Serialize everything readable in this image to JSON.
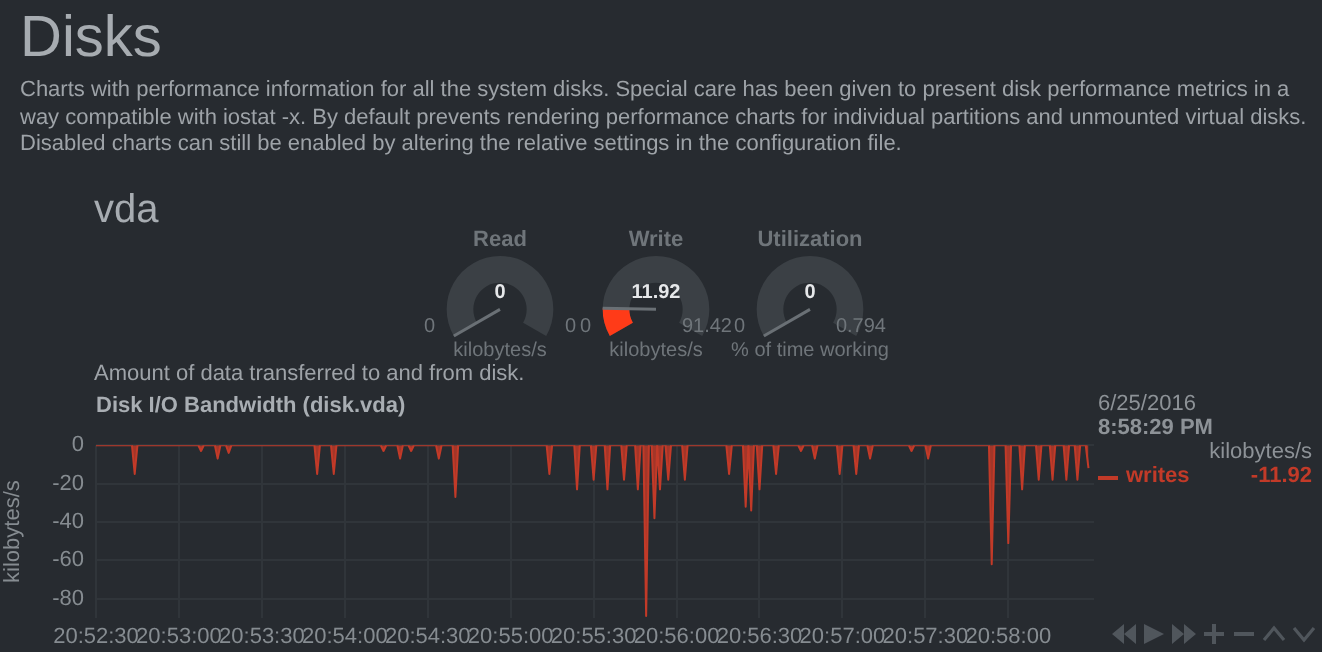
{
  "chart_data": [
    {
      "type": "other",
      "title": "Disks",
      "subtitle": "Charts with performance information for all the system disks. Special care has been given to present disk performance metrics in a way compatible with iostat -x. By default prevents rendering performance charts for individual partitions and unmounted virtual disks. Disabled charts can still be enabled by altering the relative settings in the configuration file.",
      "annotations": [
        "vda"
      ]
    },
    {
      "type": "other",
      "title": "Read",
      "values": [
        0
      ],
      "data_labels": true,
      "annotations": [
        "0",
        "0"
      ],
      "ylabel": "kilobytes/s",
      "color": "#ff3b18"
    },
    {
      "type": "other",
      "title": "Write",
      "values": [
        11.92
      ],
      "data_labels": true,
      "annotations": [
        "0",
        "91.42"
      ],
      "ylabel": "kilobytes/s",
      "color": "#ff3b18"
    },
    {
      "type": "other",
      "title": "Utilization",
      "values": [
        0
      ],
      "data_labels": true,
      "annotations": [
        "0",
        "0.794"
      ],
      "ylabel": "% of time working",
      "color": "#ff3b18"
    },
    {
      "type": "area",
      "title": "Disk I/O Bandwidth (disk.vda)",
      "subtitle": "Amount of data transferred to and from disk.",
      "ylabel": "kilobytes/s",
      "grid": true,
      "legend": "right",
      "x": [
        "2016-06-25T20:52:30",
        "2016-06-25T20:52:43",
        "2016-06-25T20:52:44",
        "2016-06-25T20:52:45",
        "2016-06-25T20:53:07",
        "2016-06-25T20:53:08",
        "2016-06-25T20:53:09",
        "2016-06-25T20:53:13",
        "2016-06-25T20:53:14",
        "2016-06-25T20:53:15",
        "2016-06-25T20:53:17",
        "2016-06-25T20:53:18",
        "2016-06-25T20:53:19",
        "2016-06-25T20:53:49",
        "2016-06-25T20:53:50",
        "2016-06-25T20:53:51",
        "2016-06-25T20:53:55",
        "2016-06-25T20:53:56",
        "2016-06-25T20:53:57",
        "2016-06-25T20:54:13",
        "2016-06-25T20:54:14",
        "2016-06-25T20:54:15",
        "2016-06-25T20:54:19",
        "2016-06-25T20:54:20",
        "2016-06-25T20:54:21",
        "2016-06-25T20:54:23",
        "2016-06-25T20:54:24",
        "2016-06-25T20:54:25",
        "2016-06-25T20:54:33",
        "2016-06-25T20:54:34",
        "2016-06-25T20:54:35",
        "2016-06-25T20:54:39",
        "2016-06-25T20:54:40",
        "2016-06-25T20:54:41",
        "2016-06-25T20:55:13",
        "2016-06-25T20:55:14",
        "2016-06-25T20:55:15",
        "2016-06-25T20:55:23",
        "2016-06-25T20:55:24",
        "2016-06-25T20:55:25",
        "2016-06-25T20:55:29",
        "2016-06-25T20:55:30",
        "2016-06-25T20:55:31",
        "2016-06-25T20:55:34",
        "2016-06-25T20:55:35",
        "2016-06-25T20:55:36",
        "2016-06-25T20:55:40",
        "2016-06-25T20:55:41",
        "2016-06-25T20:55:42",
        "2016-06-25T20:55:45",
        "2016-06-25T20:55:46",
        "2016-06-25T20:55:47",
        "2016-06-25T20:55:48",
        "2016-06-25T20:55:49",
        "2016-06-25T20:55:50",
        "2016-06-25T20:55:51",
        "2016-06-25T20:55:52",
        "2016-06-25T20:55:53",
        "2016-06-25T20:55:54",
        "2016-06-25T20:55:55",
        "2016-06-25T20:55:56",
        "2016-06-25T20:55:57",
        "2016-06-25T20:55:58",
        "2016-06-25T20:56:02",
        "2016-06-25T20:56:03",
        "2016-06-25T20:56:04",
        "2016-06-25T20:56:18",
        "2016-06-25T20:56:19",
        "2016-06-25T20:56:20",
        "2016-06-25T20:56:24",
        "2016-06-25T20:56:25",
        "2016-06-25T20:56:26",
        "2016-06-25T20:56:27",
        "2016-06-25T20:56:28",
        "2016-06-25T20:56:29",
        "2016-06-25T20:56:30",
        "2016-06-25T20:56:31",
        "2016-06-25T20:56:35",
        "2016-06-25T20:56:36",
        "2016-06-25T20:56:37",
        "2016-06-25T20:56:44",
        "2016-06-25T20:56:45",
        "2016-06-25T20:56:46",
        "2016-06-25T20:56:49",
        "2016-06-25T20:56:50",
        "2016-06-25T20:56:51",
        "2016-06-25T20:56:58",
        "2016-06-25T20:56:59",
        "2016-06-25T20:57:00",
        "2016-06-25T20:57:04",
        "2016-06-25T20:57:05",
        "2016-06-25T20:57:06",
        "2016-06-25T20:57:09",
        "2016-06-25T20:57:10",
        "2016-06-25T20:57:11",
        "2016-06-25T20:57:24",
        "2016-06-25T20:57:25",
        "2016-06-25T20:57:26",
        "2016-06-25T20:57:30",
        "2016-06-25T20:57:31",
        "2016-06-25T20:57:32",
        "2016-06-25T20:57:53",
        "2016-06-25T20:57:54",
        "2016-06-25T20:57:55",
        "2016-06-25T20:57:59",
        "2016-06-25T20:58:00",
        "2016-06-25T20:58:01",
        "2016-06-25T20:58:04",
        "2016-06-25T20:58:05",
        "2016-06-25T20:58:06",
        "2016-06-25T20:58:10",
        "2016-06-25T20:58:11",
        "2016-06-25T20:58:12",
        "2016-06-25T20:58:15",
        "2016-06-25T20:58:16",
        "2016-06-25T20:58:17",
        "2016-06-25T20:58:20",
        "2016-06-25T20:58:21",
        "2016-06-25T20:58:22",
        "2016-06-25T20:58:24",
        "2016-06-25T20:58:25",
        "2016-06-25T20:58:26",
        "2016-06-25T20:58:28",
        "2016-06-25T20:58:29"
      ],
      "series": [
        {
          "name": "writes",
          "color": "#c23a28",
          "values": [
            0,
            0,
            -15,
            0,
            0,
            -3,
            0,
            0,
            -7,
            0,
            0,
            -4,
            0,
            0,
            -15,
            0,
            0,
            -15,
            0,
            0,
            -3,
            0,
            0,
            -7,
            0,
            0,
            -3,
            0,
            0,
            -7,
            0,
            0,
            -27,
            0,
            0,
            -15,
            0,
            0,
            -23,
            0,
            0,
            -18,
            0,
            0,
            -23,
            0,
            0,
            -18,
            0,
            0,
            -23,
            0,
            0,
            -89,
            0,
            0,
            -38,
            0,
            -23,
            0,
            0,
            -18,
            0,
            0,
            -18,
            0,
            0,
            -15,
            0,
            0,
            -32,
            0,
            -34,
            0,
            0,
            -23,
            0,
            0,
            -15,
            0,
            0,
            -3,
            0,
            0,
            -7,
            0,
            0,
            -15,
            0,
            0,
            -15,
            0,
            0,
            -7,
            0,
            0,
            -3,
            0,
            0,
            -7,
            0,
            0,
            -62,
            0,
            0,
            -51,
            0,
            0,
            -23,
            0,
            0,
            -18,
            0,
            0,
            -18,
            0,
            0,
            -18,
            0,
            0,
            -18,
            0,
            0,
            -11.92
          ]
        }
      ],
      "xlim": [
        "2016-06-25T20:52:30",
        "2016-06-25T20:58:31"
      ],
      "xticks": [
        {
          "value": "2016-06-25T20:52:30",
          "label": "20:52:30"
        },
        {
          "value": "2016-06-25T20:53:00",
          "label": "20:53:00"
        },
        {
          "value": "2016-06-25T20:53:30",
          "label": "20:53:30"
        },
        {
          "value": "2016-06-25T20:54:00",
          "label": "20:54:00"
        },
        {
          "value": "2016-06-25T20:54:30",
          "label": "20:54:30"
        },
        {
          "value": "2016-06-25T20:55:00",
          "label": "20:55:00"
        },
        {
          "value": "2016-06-25T20:55:30",
          "label": "20:55:30"
        },
        {
          "value": "2016-06-25T20:56:00",
          "label": "20:56:00"
        },
        {
          "value": "2016-06-25T20:56:30",
          "label": "20:56:30"
        },
        {
          "value": "2016-06-25T20:57:00",
          "label": "20:57:00"
        },
        {
          "value": "2016-06-25T20:57:30",
          "label": "20:57:30"
        },
        {
          "value": "2016-06-25T20:58:00",
          "label": "20:58:00"
        }
      ],
      "ylim": [
        -90,
        0
      ],
      "yticks": [
        0,
        -20,
        -40,
        -60,
        -80
      ],
      "annotations": [
        "6/25/2016",
        "8:58:29 PM",
        "kilobytes/s",
        "-11.92"
      ]
    }
  ]
}
